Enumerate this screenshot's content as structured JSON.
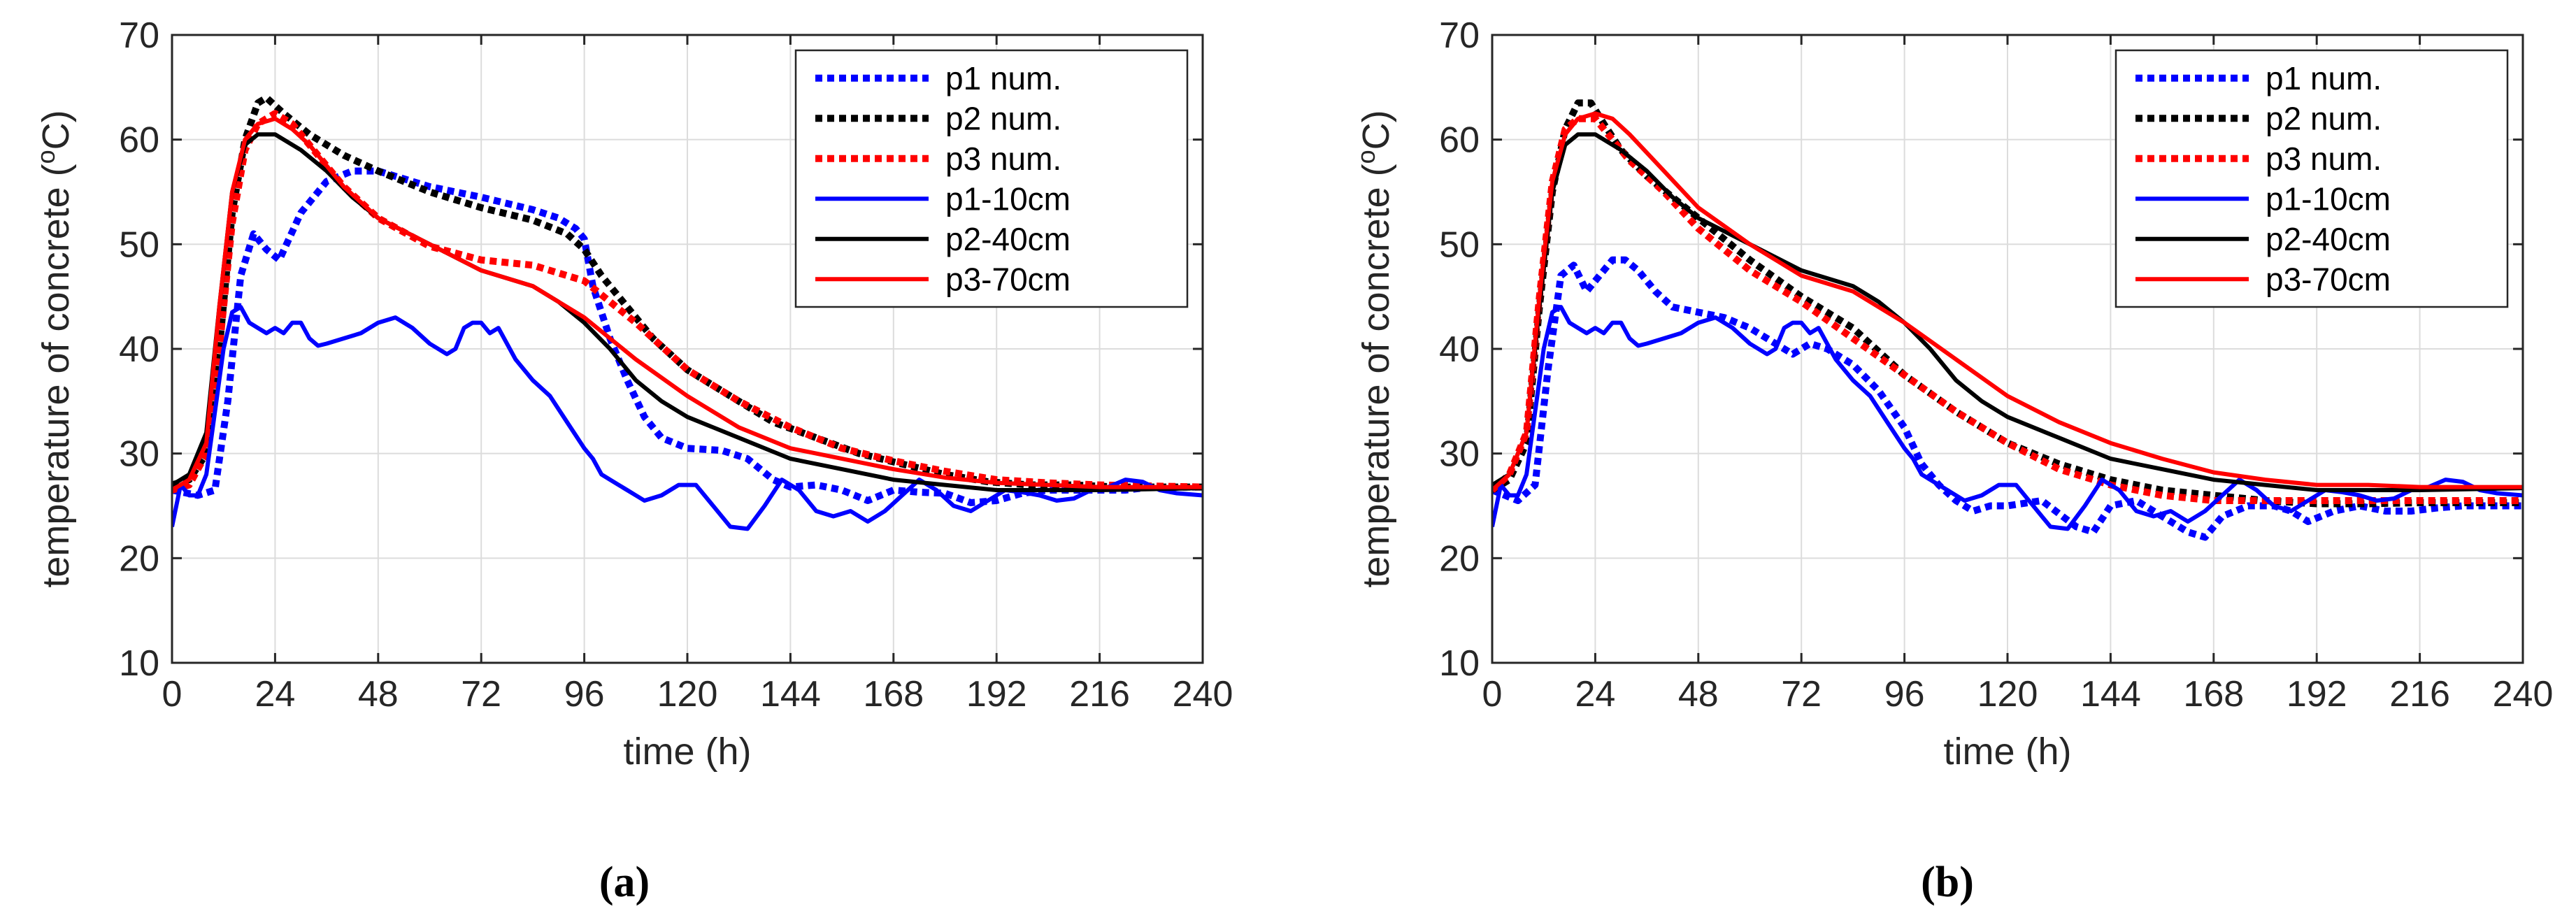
{
  "chart_data": [
    {
      "panel_label": "(a)",
      "type": "line",
      "title": "",
      "xlabel": "time (h)",
      "ylabel_prefix": "temperature of concrete (",
      "ylabel_sup": "o",
      "ylabel_suffix": "C)",
      "xlim": [
        0,
        240
      ],
      "ylim": [
        10,
        70
      ],
      "xticks": [
        0,
        24,
        48,
        72,
        96,
        120,
        144,
        168,
        192,
        216,
        240
      ],
      "yticks": [
        10,
        20,
        30,
        40,
        50,
        60,
        70
      ],
      "grid": true,
      "legend_position": "top-right",
      "series": [
        {
          "name": "p1 num.",
          "color": "#0000ff",
          "style": "dotted",
          "x": [
            0,
            6,
            10,
            13,
            16,
            19,
            22,
            25,
            30,
            36,
            42,
            48,
            60,
            72,
            84,
            90,
            94,
            96,
            98,
            102,
            106,
            110,
            114,
            120,
            128,
            134,
            140,
            144,
            150,
            156,
            162,
            168,
            174,
            180,
            186,
            192,
            198,
            204,
            210,
            216,
            222,
            228,
            234,
            240
          ],
          "y": [
            26.5,
            26,
            26.5,
            35,
            47,
            51,
            49.5,
            48.5,
            53,
            56,
            57,
            57,
            55.5,
            54.5,
            53.3,
            52.5,
            51.5,
            50.5,
            46,
            41,
            37,
            33.5,
            31.5,
            30.5,
            30.3,
            29.5,
            27.5,
            26.8,
            27,
            26.5,
            25.5,
            26.5,
            26.3,
            26.2,
            25.3,
            25.5,
            26.2,
            26.5,
            26.5,
            26.5,
            26.5,
            26.8,
            26.8,
            26.8
          ]
        },
        {
          "name": "p2 num.",
          "color": "#000000",
          "style": "dotted",
          "x": [
            0,
            4,
            8,
            11,
            14,
            17,
            20,
            22,
            26,
            32,
            40,
            48,
            60,
            72,
            84,
            92,
            96,
            100,
            106,
            112,
            120,
            130,
            140,
            150,
            160,
            170,
            180,
            190,
            200,
            210,
            220,
            230,
            240
          ],
          "y": [
            27,
            27.5,
            30,
            40,
            53,
            60,
            63.5,
            64,
            62.5,
            60.5,
            58.5,
            57,
            55,
            53.5,
            52.3,
            51,
            49.5,
            47,
            44,
            41,
            38,
            35.5,
            33,
            31.5,
            30,
            29,
            28,
            27.3,
            27,
            27,
            26.8,
            26.8,
            26.8
          ]
        },
        {
          "name": "p3 num.",
          "color": "#ff0000",
          "style": "dotted",
          "x": [
            0,
            4,
            8,
            11,
            14,
            17,
            20,
            24,
            28,
            32,
            40,
            48,
            60,
            72,
            84,
            96,
            108,
            120,
            132,
            144,
            156,
            168,
            180,
            192,
            204,
            216,
            228,
            240
          ],
          "y": [
            26.5,
            27,
            30,
            40,
            52,
            59,
            61.5,
            62.5,
            61.5,
            59.5,
            55.5,
            52.5,
            49.8,
            48.5,
            48,
            46.5,
            42.5,
            38,
            35,
            32.5,
            30.5,
            29.3,
            28.3,
            27.5,
            27.2,
            27,
            26.9,
            26.8
          ]
        },
        {
          "name": "p1-10cm",
          "color": "#0000ff",
          "style": "solid",
          "x": [
            0,
            2,
            4,
            6,
            8,
            10,
            12,
            14,
            16,
            18,
            20,
            22,
            24,
            26,
            28,
            30,
            32,
            34,
            36,
            40,
            44,
            48,
            52,
            56,
            60,
            64,
            66,
            68,
            70,
            72,
            74,
            76,
            80,
            84,
            88,
            92,
            96,
            98,
            100,
            102,
            104,
            106,
            108,
            110,
            114,
            118,
            122,
            126,
            130,
            134,
            138,
            142,
            146,
            150,
            154,
            158,
            162,
            166,
            170,
            174,
            178,
            182,
            186,
            190,
            194,
            198,
            202,
            206,
            210,
            214,
            218,
            222,
            226,
            230,
            234,
            240
          ],
          "y": [
            23,
            27,
            26,
            26,
            28,
            34,
            40,
            43.5,
            44,
            42.5,
            42,
            41.5,
            42,
            41.5,
            42.5,
            42.5,
            41,
            40.3,
            40.5,
            41,
            41.5,
            42.5,
            43,
            42,
            40.5,
            39.5,
            40,
            42,
            42.5,
            42.5,
            41.5,
            42,
            39,
            37,
            35.5,
            33,
            30.5,
            29.5,
            28,
            27.5,
            27,
            26.5,
            26,
            25.5,
            26,
            27,
            27,
            25,
            23,
            22.8,
            25,
            27.5,
            26.5,
            24.5,
            24,
            24.5,
            23.5,
            24.5,
            26,
            27.5,
            26.5,
            25,
            24.5,
            25.5,
            26.5,
            26.3,
            26,
            25.5,
            25.7,
            26.5,
            26.8,
            27.5,
            27.3,
            26.5,
            26.2,
            26
          ]
        },
        {
          "name": "p2-40cm",
          "color": "#000000",
          "style": "solid",
          "x": [
            0,
            4,
            8,
            11,
            14,
            17,
            20,
            24,
            30,
            36,
            42,
            48,
            60,
            72,
            84,
            90,
            96,
            102,
            108,
            114,
            120,
            132,
            144,
            156,
            168,
            180,
            192,
            204,
            216,
            228,
            240
          ],
          "y": [
            27,
            28,
            32,
            44,
            55,
            59.5,
            60.5,
            60.5,
            59,
            57,
            54.5,
            52.5,
            50,
            47.5,
            46,
            44.5,
            42.5,
            40,
            37,
            35,
            33.5,
            31.5,
            29.5,
            28.5,
            27.5,
            27,
            26.5,
            26.5,
            26.5,
            26.6,
            26.7
          ]
        },
        {
          "name": "p3-70cm",
          "color": "#ff0000",
          "style": "solid",
          "x": [
            0,
            4,
            8,
            11,
            14,
            17,
            20,
            24,
            28,
            32,
            40,
            48,
            60,
            72,
            84,
            96,
            108,
            120,
            132,
            144,
            156,
            168,
            180,
            192,
            204,
            216,
            228,
            240
          ],
          "y": [
            26.5,
            27.5,
            31,
            44,
            55,
            60,
            61.5,
            62,
            61,
            59.5,
            55.5,
            52.5,
            50,
            47.5,
            46,
            43,
            39,
            35.5,
            32.5,
            30.5,
            29.5,
            28.5,
            27.7,
            27.2,
            27,
            26.8,
            26.8,
            26.8
          ]
        }
      ]
    },
    {
      "panel_label": "(b)",
      "type": "line",
      "title": "",
      "xlabel": "time (h)",
      "ylabel_prefix": "temperature of concrete (",
      "ylabel_sup": "o",
      "ylabel_suffix": "C)",
      "xlim": [
        0,
        240
      ],
      "ylim": [
        10,
        70
      ],
      "xticks": [
        0,
        24,
        48,
        72,
        96,
        120,
        144,
        168,
        192,
        216,
        240
      ],
      "yticks": [
        10,
        20,
        30,
        40,
        50,
        60,
        70
      ],
      "grid": true,
      "legend_position": "top-right",
      "series": [
        {
          "name": "p1 num.",
          "color": "#0000ff",
          "style": "dotted",
          "x": [
            0,
            6,
            10,
            13,
            16,
            19,
            22,
            25,
            28,
            31,
            34,
            38,
            42,
            48,
            54,
            60,
            66,
            70,
            74,
            78,
            84,
            90,
            96,
            100,
            104,
            108,
            112,
            116,
            120,
            128,
            136,
            140,
            144,
            150,
            156,
            162,
            166,
            170,
            176,
            182,
            186,
            190,
            196,
            202,
            208,
            214,
            220,
            226,
            232,
            240
          ],
          "y": [
            26.5,
            25.5,
            27,
            38,
            47,
            48,
            45.5,
            47,
            48.5,
            48.5,
            47.5,
            45.5,
            44,
            43.5,
            43,
            42,
            40.5,
            39.5,
            40.5,
            40,
            38.5,
            36,
            32.5,
            29,
            27,
            25.5,
            24.5,
            25,
            25,
            25.5,
            23,
            22.5,
            25,
            25.5,
            24,
            22.5,
            22,
            24,
            25,
            25,
            24.5,
            23.5,
            24.5,
            25,
            24.5,
            24.5,
            24.8,
            25,
            25,
            25
          ]
        },
        {
          "name": "p2 num.",
          "color": "#000000",
          "style": "dotted",
          "x": [
            0,
            4,
            8,
            11,
            14,
            17,
            20,
            23,
            26,
            30,
            36,
            42,
            48,
            60,
            72,
            84,
            96,
            108,
            120,
            132,
            144,
            156,
            168,
            180,
            192,
            204,
            216,
            228,
            240
          ],
          "y": [
            26.5,
            27.5,
            31,
            44,
            55,
            61,
            63.5,
            63.5,
            61.5,
            59,
            56.5,
            54.5,
            52.5,
            48.5,
            45,
            42,
            37.5,
            34,
            31,
            29,
            27.5,
            26.5,
            26,
            25.5,
            25.2,
            25.2,
            25.3,
            25.3,
            25.3
          ]
        },
        {
          "name": "p3 num.",
          "color": "#ff0000",
          "style": "dotted",
          "x": [
            0,
            4,
            8,
            11,
            14,
            17,
            20,
            24,
            28,
            32,
            40,
            48,
            60,
            72,
            84,
            96,
            108,
            120,
            132,
            144,
            156,
            168,
            180,
            192,
            204,
            216,
            228,
            240
          ],
          "y": [
            26.5,
            28,
            32,
            45,
            56,
            61,
            62,
            62,
            60,
            58,
            55,
            51.5,
            47.5,
            44.5,
            41,
            37.5,
            34,
            31,
            28.5,
            27,
            26,
            25.5,
            25.5,
            25.5,
            25.5,
            25.5,
            25.5,
            25.5
          ]
        },
        {
          "name": "p1-10cm",
          "color": "#0000ff",
          "style": "solid",
          "x": [
            0,
            2,
            4,
            6,
            8,
            10,
            12,
            14,
            16,
            18,
            20,
            22,
            24,
            26,
            28,
            30,
            32,
            34,
            36,
            40,
            44,
            48,
            52,
            56,
            60,
            64,
            66,
            68,
            70,
            72,
            74,
            76,
            80,
            84,
            88,
            92,
            96,
            98,
            100,
            102,
            104,
            106,
            108,
            110,
            114,
            118,
            122,
            126,
            130,
            134,
            138,
            142,
            146,
            150,
            154,
            158,
            162,
            166,
            170,
            174,
            178,
            182,
            186,
            190,
            194,
            198,
            202,
            206,
            210,
            214,
            218,
            222,
            226,
            230,
            234,
            240
          ],
          "y": [
            23,
            27,
            26,
            26,
            28,
            34,
            40,
            43.5,
            44,
            42.5,
            42,
            41.5,
            42,
            41.5,
            42.5,
            42.5,
            41,
            40.3,
            40.5,
            41,
            41.5,
            42.5,
            43,
            42,
            40.5,
            39.5,
            40,
            42,
            42.5,
            42.5,
            41.5,
            42,
            39,
            37,
            35.5,
            33,
            30.5,
            29.5,
            28,
            27.5,
            27,
            26.5,
            26,
            25.5,
            26,
            27,
            27,
            25,
            23,
            22.8,
            25,
            27.5,
            26.5,
            24.5,
            24,
            24.5,
            23.5,
            24.5,
            26,
            27.5,
            26.5,
            25,
            24.5,
            25.5,
            26.5,
            26.3,
            26,
            25.5,
            25.7,
            26.5,
            26.8,
            27.5,
            27.3,
            26.5,
            26.2,
            26
          ]
        },
        {
          "name": "p2-40cm",
          "color": "#000000",
          "style": "solid",
          "x": [
            0,
            4,
            8,
            11,
            14,
            17,
            20,
            24,
            30,
            36,
            42,
            48,
            60,
            72,
            84,
            90,
            96,
            102,
            108,
            114,
            120,
            132,
            144,
            156,
            168,
            180,
            192,
            204,
            216,
            228,
            240
          ],
          "y": [
            27,
            28,
            32,
            44,
            55,
            59.5,
            60.5,
            60.5,
            59,
            57,
            54.5,
            52.5,
            50,
            47.5,
            46,
            44.5,
            42.5,
            40,
            37,
            35,
            33.5,
            31.5,
            29.5,
            28.5,
            27.5,
            27,
            26.5,
            26.5,
            26.5,
            26.6,
            26.7
          ]
        },
        {
          "name": "p3-70cm",
          "color": "#ff0000",
          "style": "solid",
          "x": [
            0,
            4,
            8,
            11,
            14,
            17,
            20,
            24,
            28,
            32,
            40,
            48,
            60,
            72,
            84,
            96,
            108,
            120,
            132,
            144,
            156,
            168,
            180,
            192,
            204,
            216,
            228,
            240
          ],
          "y": [
            26.5,
            28,
            32,
            45,
            56,
            60.5,
            62,
            62.5,
            62,
            60.5,
            57,
            53.5,
            50,
            47,
            45.5,
            42.5,
            39,
            35.5,
            33,
            31,
            29.5,
            28.2,
            27.5,
            27,
            27,
            26.8,
            26.8,
            26.8
          ]
        }
      ]
    }
  ]
}
